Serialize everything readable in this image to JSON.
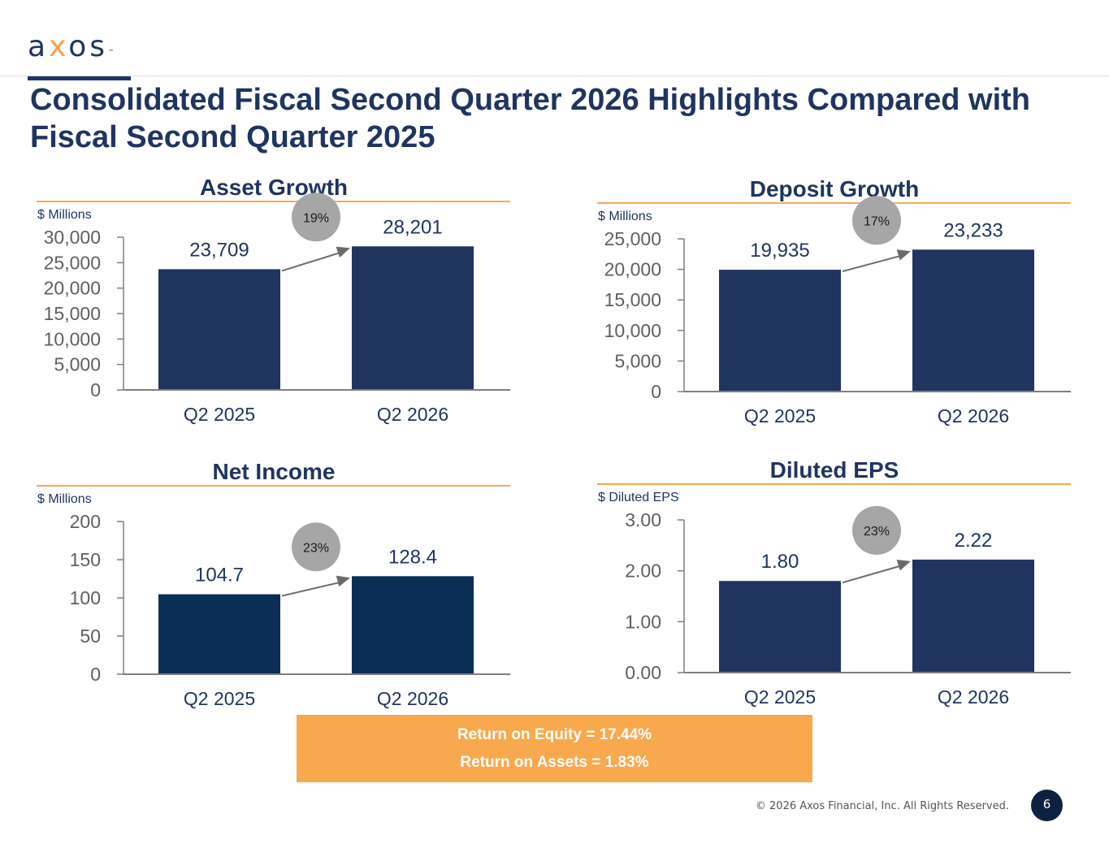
{
  "brand": {
    "logo_prefix": "a",
    "logo_x": "x",
    "logo_suffix": "os",
    "logo_tm": "™",
    "accent_color": "#f6a24a",
    "primary_color": "#1f3560"
  },
  "title": "Consolidated Fiscal Second Quarter 2026 Highlights Compared with Fiscal Second Quarter 2025",
  "chart_data": [
    {
      "type": "bar",
      "title": "Asset Growth",
      "unit_label": "$ Millions",
      "categories": [
        "Q2 2025",
        "Q2 2026"
      ],
      "values": [
        23709,
        28201
      ],
      "value_labels": [
        "23,709",
        "28,201"
      ],
      "ylim": [
        0,
        30000
      ],
      "yticks": [
        0,
        5000,
        10000,
        15000,
        20000,
        25000,
        30000
      ],
      "ytick_labels": [
        "0",
        "5,000",
        "10,000",
        "15,000",
        "20,000",
        "25,000",
        "30,000"
      ],
      "growth": "19%",
      "bar_color": "#1f3560"
    },
    {
      "type": "bar",
      "title": "Deposit Growth",
      "unit_label": "$ Millions",
      "categories": [
        "Q2 2025",
        "Q2 2026"
      ],
      "values": [
        19935,
        23233
      ],
      "value_labels": [
        "19,935",
        "23,233"
      ],
      "ylim": [
        0,
        25000
      ],
      "yticks": [
        0,
        5000,
        10000,
        15000,
        20000,
        25000
      ],
      "ytick_labels": [
        "0",
        "5,000",
        "10,000",
        "15,000",
        "20,000",
        "25,000"
      ],
      "growth": "17%",
      "bar_color": "#1f3560"
    },
    {
      "type": "bar",
      "title": "Net Income",
      "unit_label": "$ Millions",
      "categories": [
        "Q2 2025",
        "Q2 2026"
      ],
      "values": [
        104.7,
        128.4
      ],
      "value_labels": [
        "104.7",
        "128.4"
      ],
      "ylim": [
        0,
        200
      ],
      "yticks": [
        0,
        50,
        100,
        150,
        200
      ],
      "ytick_labels": [
        "0",
        "50",
        "100",
        "150",
        "200"
      ],
      "growth": "23%",
      "bar_color": "#0a2e55"
    },
    {
      "type": "bar",
      "title": "Diluted EPS",
      "unit_label": "$ Diluted EPS",
      "categories": [
        "Q2 2025",
        "Q2 2026"
      ],
      "values": [
        1.8,
        2.22
      ],
      "value_labels": [
        "1.80",
        "2.22"
      ],
      "ylim": [
        0,
        3
      ],
      "yticks": [
        0,
        1,
        2,
        3
      ],
      "ytick_labels": [
        "0.00",
        "1.00",
        "2.00",
        "3.00"
      ],
      "growth": "23%",
      "bar_color": "#1f3560"
    }
  ],
  "summary": {
    "roe": "Return on Equity = 17.44%",
    "roa": "Return on Assets = 1.83%"
  },
  "footer": {
    "copyright": "© 2026 Axos Financial, Inc. All Rights Reserved.",
    "page": "6"
  }
}
